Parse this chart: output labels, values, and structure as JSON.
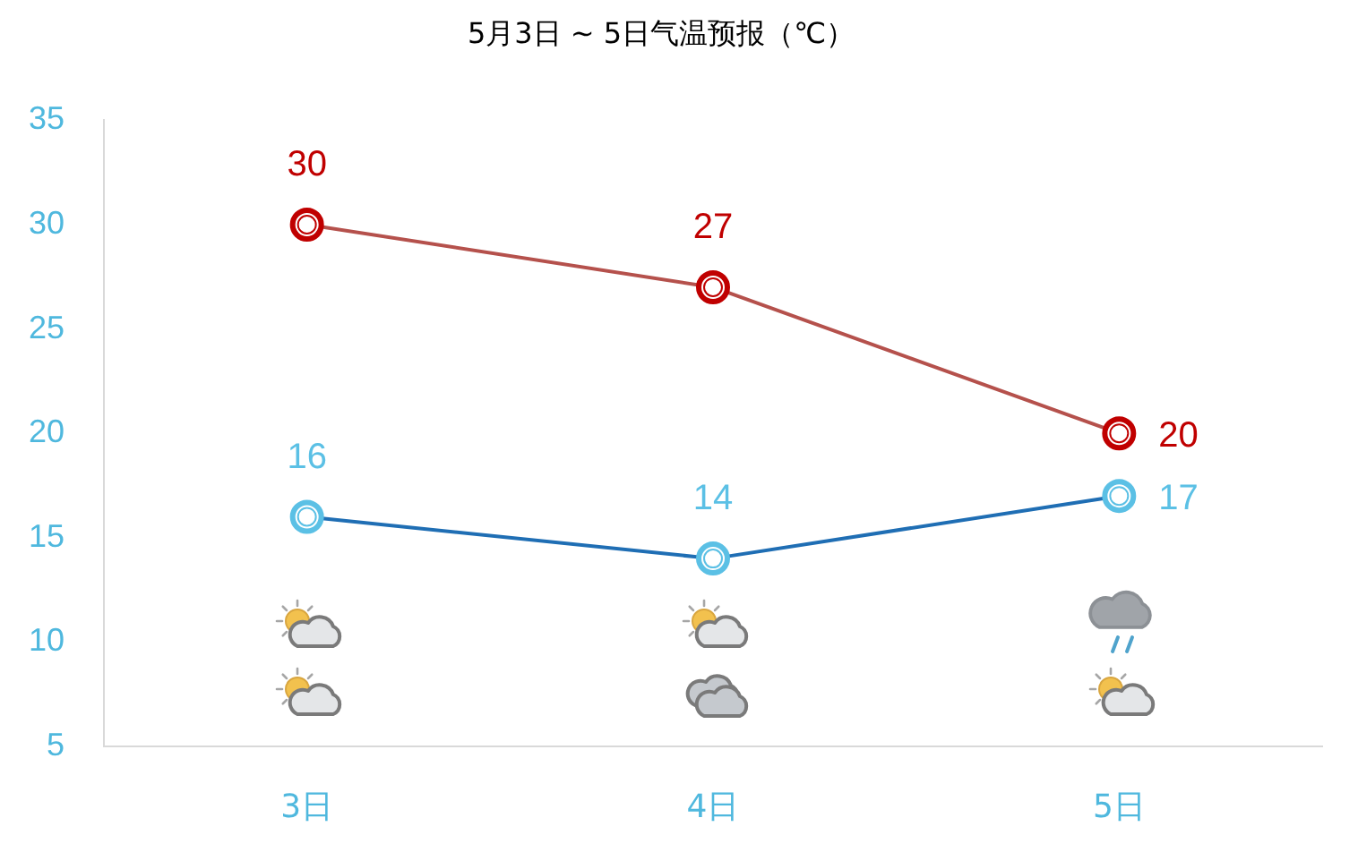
{
  "chart_data": {
    "type": "line",
    "title": "5月3日 ~ 5日气温预报（℃）",
    "categories": [
      "3日",
      "4日",
      "5日"
    ],
    "series": [
      {
        "color": "#b5514c",
        "colors": [
          "#c00000",
          "#c00000",
          "#c00000"
        ],
        "values": [
          30,
          27,
          20
        ]
      },
      {
        "color": "#1f6eb4",
        "colors": [
          "#5bc0e5",
          "#5bc0e5",
          "#5bc0e5"
        ],
        "values": [
          16,
          14,
          17
        ]
      }
    ],
    "ylim": [
      5,
      35
    ],
    "yticks": [
      5,
      10,
      15,
      20,
      25,
      30,
      35
    ],
    "data_labels": true,
    "marker": "circle"
  }
}
